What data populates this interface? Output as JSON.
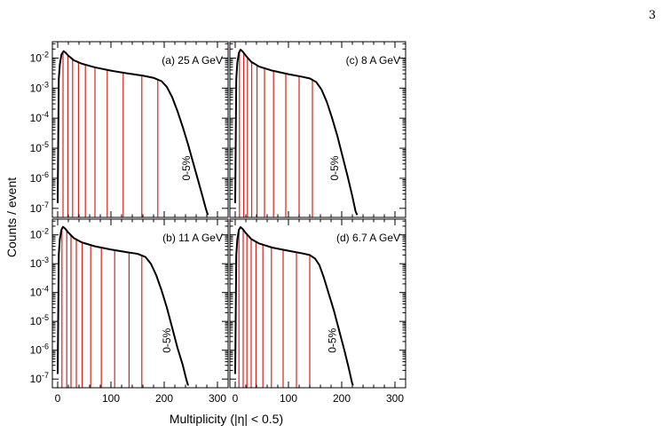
{
  "page_number": "3",
  "chart_data": {
    "type": "line",
    "xlabel": "Multiplicity (|η| < 0.5)",
    "ylabel": "Counts / event",
    "yscale": "log",
    "ylim": [
      5e-08,
      0.035
    ],
    "xlim": [
      -10,
      320
    ],
    "x_ticks": [
      0,
      100,
      200,
      300
    ],
    "y_ticks": [
      {
        "value": 1e-07,
        "base": "10",
        "exp": "-7"
      },
      {
        "value": 1e-06,
        "base": "10",
        "exp": "-6"
      },
      {
        "value": 1e-05,
        "base": "10",
        "exp": "-5"
      },
      {
        "value": 0.0001,
        "base": "10",
        "exp": "-4"
      },
      {
        "value": 0.001,
        "base": "10",
        "exp": "-3"
      },
      {
        "value": 0.01,
        "base": "10",
        "exp": "-2"
      }
    ],
    "centrality_annotation": "0-5%",
    "line_color": "#000000",
    "cut_color": "#e0201b",
    "panels": [
      {
        "label": "(a) 25 A GeV",
        "curve": [
          [
            0,
            1.5e-07
          ],
          [
            2,
            0.002
          ],
          [
            4,
            0.006
          ],
          [
            7,
            0.013
          ],
          [
            11,
            0.017
          ],
          [
            15,
            0.015
          ],
          [
            20,
            0.012
          ],
          [
            30,
            0.0085
          ],
          [
            45,
            0.0065
          ],
          [
            70,
            0.0049
          ],
          [
            100,
            0.0038
          ],
          [
            130,
            0.0031
          ],
          [
            160,
            0.0026
          ],
          [
            180,
            0.0022
          ],
          [
            195,
            0.0017
          ],
          [
            205,
            0.0011
          ],
          [
            215,
            0.0005
          ],
          [
            225,
            0.00017
          ],
          [
            235,
            5e-05
          ],
          [
            245,
            1.3e-05
          ],
          [
            255,
            3e-06
          ],
          [
            265,
            7e-07
          ],
          [
            272,
            2.5e-07
          ],
          [
            278,
            1e-07
          ],
          [
            282,
            6e-08
          ]
        ],
        "cuts": [
          10,
          19,
          28,
          39,
          52,
          70,
          93,
          123,
          158,
          188
        ],
        "annot_x": 255
      },
      {
        "label": "(c) 8 A GeV",
        "curve": [
          [
            0,
            1.5e-07
          ],
          [
            2,
            0.002
          ],
          [
            4,
            0.007
          ],
          [
            7,
            0.015
          ],
          [
            10,
            0.019
          ],
          [
            14,
            0.0165
          ],
          [
            20,
            0.012
          ],
          [
            30,
            0.0075
          ],
          [
            45,
            0.0052
          ],
          [
            70,
            0.0038
          ],
          [
            100,
            0.0029
          ],
          [
            125,
            0.0024
          ],
          [
            140,
            0.0021
          ],
          [
            152,
            0.0016
          ],
          [
            162,
            0.0009
          ],
          [
            172,
            0.00035
          ],
          [
            182,
            0.0001
          ],
          [
            192,
            2.5e-05
          ],
          [
            202,
            5e-06
          ],
          [
            212,
            1e-06
          ],
          [
            220,
            2.5e-07
          ],
          [
            226,
            8e-08
          ],
          [
            229,
            6e-08
          ]
        ],
        "cuts": [
          8,
          16,
          23,
          31,
          41,
          55,
          72,
          95,
          120,
          145
        ],
        "annot_x": 200
      },
      {
        "label": "(b) 11 A GeV",
        "curve": [
          [
            0,
            1.5e-07
          ],
          [
            2,
            0.002
          ],
          [
            4,
            0.007
          ],
          [
            7,
            0.015
          ],
          [
            10,
            0.019
          ],
          [
            14,
            0.0165
          ],
          [
            20,
            0.012
          ],
          [
            30,
            0.0078
          ],
          [
            45,
            0.0055
          ],
          [
            70,
            0.004
          ],
          [
            100,
            0.0031
          ],
          [
            130,
            0.0025
          ],
          [
            150,
            0.0022
          ],
          [
            165,
            0.0017
          ],
          [
            175,
            0.001
          ],
          [
            185,
            0.0004
          ],
          [
            195,
            0.00012
          ],
          [
            205,
            3e-05
          ],
          [
            215,
            6e-06
          ],
          [
            225,
            1.2e-06
          ],
          [
            235,
            3e-07
          ],
          [
            242,
            9e-08
          ],
          [
            245,
            6e-08
          ]
        ],
        "cuts": [
          8,
          17,
          25,
          35,
          46,
          62,
          82,
          107,
          134,
          158
        ],
        "annot_x": 218
      },
      {
        "label": "(d) 6.7 A GeV",
        "curve": [
          [
            0,
            1.5e-07
          ],
          [
            2,
            0.002
          ],
          [
            4,
            0.007
          ],
          [
            7,
            0.015
          ],
          [
            10,
            0.0185
          ],
          [
            14,
            0.016
          ],
          [
            20,
            0.0115
          ],
          [
            30,
            0.0072
          ],
          [
            45,
            0.005
          ],
          [
            70,
            0.0036
          ],
          [
            100,
            0.0028
          ],
          [
            125,
            0.0023
          ],
          [
            140,
            0.002
          ],
          [
            150,
            0.0015
          ],
          [
            158,
            0.0009
          ],
          [
            166,
            0.00035
          ],
          [
            175,
            0.0001
          ],
          [
            185,
            2.5e-05
          ],
          [
            195,
            5e-06
          ],
          [
            205,
            1e-06
          ],
          [
            213,
            2.5e-07
          ],
          [
            219,
            8e-08
          ],
          [
            221,
            6e-08
          ]
        ],
        "cuts": [
          7,
          15,
          22,
          30,
          39,
          52,
          68,
          90,
          115,
          140
        ],
        "annot_x": 196
      }
    ]
  }
}
